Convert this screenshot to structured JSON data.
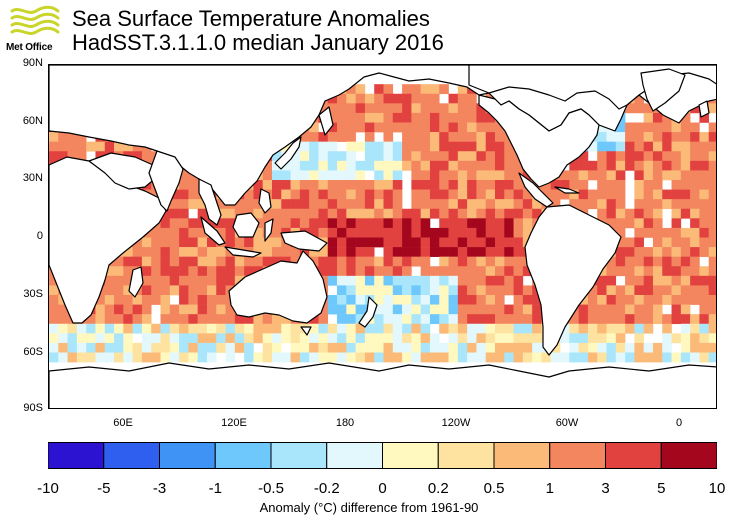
{
  "header": {
    "title": "Sea Surface Temperature Anomalies",
    "subtitle": "HadSST.3.1.1.0 median January 2016",
    "logo_text": "Met Office"
  },
  "map": {
    "lat_labels": [
      "90N",
      "60N",
      "30N",
      "0",
      "30S",
      "60S",
      "90S"
    ],
    "lon_labels": [
      "60E",
      "120E",
      "180",
      "120W",
      "60W",
      "0"
    ],
    "land_color": "#ffffff",
    "grid": "5x5 degree",
    "projection": "plate carree, centred 180"
  },
  "legend": {
    "ticks": [
      "-10",
      "-5",
      "-3",
      "-1",
      "-0.5",
      "-0.2",
      "0",
      "0.2",
      "0.5",
      "1",
      "3",
      "5",
      "10"
    ],
    "colors": [
      "#2c13d2",
      "#2e5fef",
      "#3f93f5",
      "#6fc8fb",
      "#a9e6fb",
      "#e2f8fd",
      "#fff9bf",
      "#fde2a0",
      "#fbba78",
      "#f3855f",
      "#e2423f",
      "#a4061e"
    ],
    "caption": "Anomaly (°C) difference from 1961-90"
  },
  "colors": {
    "no_data": "#ffffff",
    "grid_outline": "#000000"
  }
}
